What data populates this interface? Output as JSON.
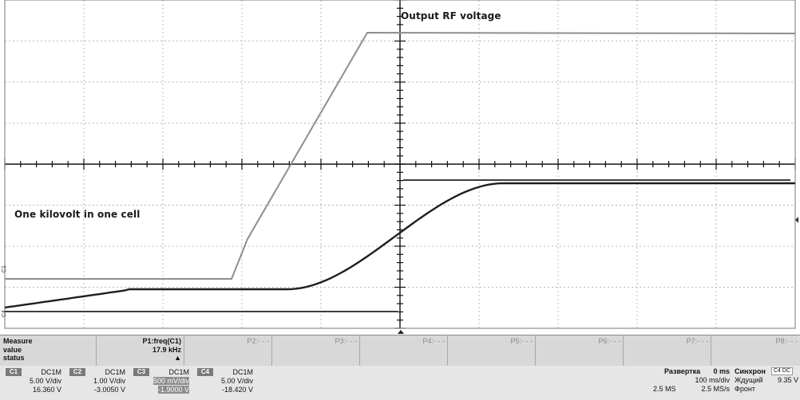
{
  "annotations": {
    "output_label": "Output RF voltage",
    "cell_label": "One kilovolt in one cell"
  },
  "trace_markers": {
    "c1": "C1",
    "c4": "C4"
  },
  "measure": {
    "row_labels": [
      "Measure",
      "value",
      "status"
    ],
    "params": [
      {
        "name": "P1:freq(C1)",
        "value": "17.9 kHz",
        "status": "▲"
      },
      {
        "name": "P2:- - -",
        "value": "",
        "status": ""
      },
      {
        "name": "P3:- - -",
        "value": "",
        "status": ""
      },
      {
        "name": "P4:- - -",
        "value": "",
        "status": ""
      },
      {
        "name": "P5:- - -",
        "value": "",
        "status": ""
      },
      {
        "name": "P6:- - -",
        "value": "",
        "status": ""
      },
      {
        "name": "P7:- - -",
        "value": "",
        "status": ""
      },
      {
        "name": "P8:- - -",
        "value": "",
        "status": ""
      }
    ]
  },
  "channels": [
    {
      "id": "C1",
      "coupling": "DC1M",
      "scale": "5.00 V/div",
      "offset": "16.360 V",
      "highlight": false
    },
    {
      "id": "C2",
      "coupling": "DC1M",
      "scale": "1.00 V/div",
      "offset": "-3.0050 V",
      "highlight": false
    },
    {
      "id": "C3",
      "coupling": "DC1M",
      "scale": "500 mV/div",
      "offset": "-1.9000 V",
      "highlight": true
    },
    {
      "id": "C4",
      "coupling": "DC1M",
      "scale": "5.00 V/div",
      "offset": "-18.420 V",
      "highlight": false
    }
  ],
  "timebase": {
    "title": "Развертка",
    "delay": "0 ms",
    "scale": "100 ms/div",
    "samples": "2.5 MS",
    "rate": "2.5 MS/s"
  },
  "trigger": {
    "title": "Синхрон",
    "source_badge": "C4 DC",
    "mode": "Ждущий",
    "level": "9.35 V",
    "slope": "Фронт"
  },
  "colors": {
    "trace_rf": "#8e8e8e",
    "trace_cell": "#1e1e1e",
    "trace_ref": "#3a3f45",
    "grid_major": "#111111",
    "grid_minor": "#b8b8b8"
  }
}
